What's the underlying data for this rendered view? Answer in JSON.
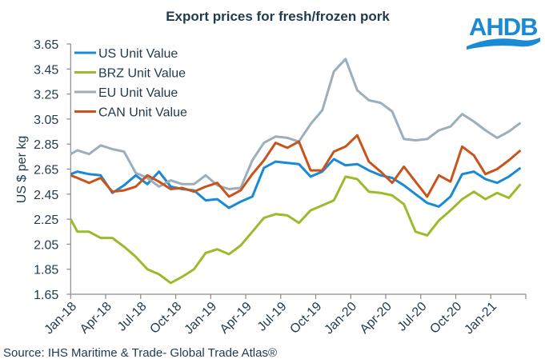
{
  "chart_data": {
    "type": "line",
    "title": "Export prices for fresh/frozen pork",
    "xlabel": "",
    "ylabel": "US $ per kg",
    "ylim": [
      1.65,
      3.65
    ],
    "yticks": [
      "1.65",
      "1.85",
      "2.05",
      "2.25",
      "2.45",
      "2.65",
      "2.85",
      "3.05",
      "3.25",
      "3.45",
      "3.65"
    ],
    "xtick_labels": [
      "Jan-18",
      "Apr-18",
      "Jul-18",
      "Oct-18",
      "Jan-19",
      "Apr-19",
      "Jul-19",
      "Oct-19",
      "Jan-20",
      "Apr-20",
      "Jul-20",
      "Oct-20",
      "Jan-21"
    ],
    "grid": false,
    "legend_position": "top-left",
    "series": [
      {
        "name": "US Unit Value",
        "color": "#1a8ad4",
        "values": [
          2.61,
          2.63,
          2.61,
          2.6,
          2.46,
          2.52,
          2.6,
          2.53,
          2.63,
          2.51,
          2.49,
          2.48,
          2.4,
          2.41,
          2.34,
          2.39,
          2.43,
          2.66,
          2.71,
          2.7,
          2.69,
          2.59,
          2.63,
          2.73,
          2.68,
          2.69,
          2.64,
          2.6,
          2.58,
          2.52,
          2.45,
          2.38,
          2.35,
          2.43,
          2.61,
          2.63,
          2.57,
          2.54,
          2.59,
          2.66
        ]
      },
      {
        "name": "BRZ Unit Value",
        "color": "#9bbb2a",
        "values": [
          2.25,
          2.15,
          2.15,
          2.1,
          2.1,
          2.03,
          1.95,
          1.85,
          1.81,
          1.74,
          1.79,
          1.85,
          1.98,
          2.01,
          1.97,
          2.04,
          2.15,
          2.26,
          2.29,
          2.28,
          2.22,
          2.32,
          2.36,
          2.4,
          2.59,
          2.57,
          2.47,
          2.46,
          2.44,
          2.37,
          2.15,
          2.12,
          2.24,
          2.32,
          2.41,
          2.47,
          2.41,
          2.46,
          2.42,
          2.53
        ]
      },
      {
        "name": "EU Unit Value",
        "color": "#9aafbb",
        "values": [
          2.77,
          2.8,
          2.77,
          2.84,
          2.81,
          2.79,
          2.62,
          2.58,
          2.51,
          2.56,
          2.53,
          2.53,
          2.6,
          2.52,
          2.49,
          2.5,
          2.72,
          2.86,
          2.91,
          2.9,
          2.87,
          3.01,
          3.12,
          3.43,
          3.53,
          3.28,
          3.2,
          3.18,
          3.11,
          2.89,
          2.88,
          2.89,
          2.96,
          2.99,
          3.09,
          3.03,
          2.96,
          2.9,
          2.95,
          3.02
        ]
      },
      {
        "name": "CAN Unit Value",
        "color": "#c8541c",
        "values": [
          2.6,
          2.58,
          2.54,
          2.58,
          2.47,
          2.48,
          2.51,
          2.6,
          2.55,
          2.49,
          2.5,
          2.47,
          2.51,
          2.54,
          2.43,
          2.48,
          2.61,
          2.72,
          2.86,
          2.82,
          2.87,
          2.64,
          2.64,
          2.79,
          2.83,
          2.92,
          2.71,
          2.63,
          2.54,
          2.67,
          2.55,
          2.43,
          2.6,
          2.55,
          2.83,
          2.76,
          2.61,
          2.65,
          2.72,
          2.8
        ]
      }
    ],
    "source": "Source: IHS Maritime & Trade- Global Trade Atlas®"
  },
  "logo": {
    "text": "AHDB",
    "color": "#1a8ad4"
  }
}
